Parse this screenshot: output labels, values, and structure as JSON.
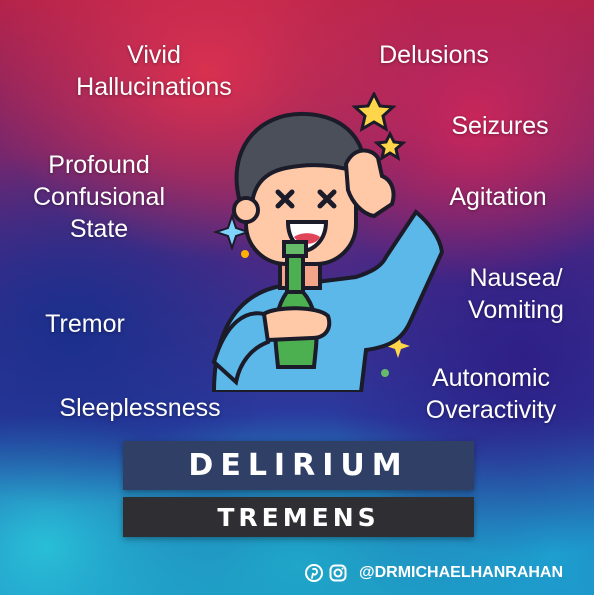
{
  "symptoms": {
    "vivid_hallucinations": [
      "Vivid",
      "Hallucinations"
    ],
    "delusions": [
      "Delusions"
    ],
    "seizures": [
      "Seizures"
    ],
    "profound_confusional_state": [
      "Profound",
      "Confusional",
      "State"
    ],
    "agitation": [
      "Agitation"
    ],
    "nausea_vomiting": [
      "Nausea/",
      "Vomiting"
    ],
    "tremor": [
      "Tremor"
    ],
    "autonomic_overactivity": [
      "Autonomic",
      "Overactivity"
    ],
    "sleeplessness": [
      "Sleeplessness"
    ]
  },
  "title": {
    "line1": "DELIRIUM",
    "line2": "TREMENS"
  },
  "footer": {
    "handle": "@DRMICHAELHANRAHAN",
    "icons": [
      "pinterest-icon",
      "instagram-icon"
    ]
  },
  "colors": {
    "title_box": "#2f3f66",
    "subtitle_box": "#2e2e33",
    "shirt": "#5bb8e8",
    "bottle": "#4caf50"
  }
}
